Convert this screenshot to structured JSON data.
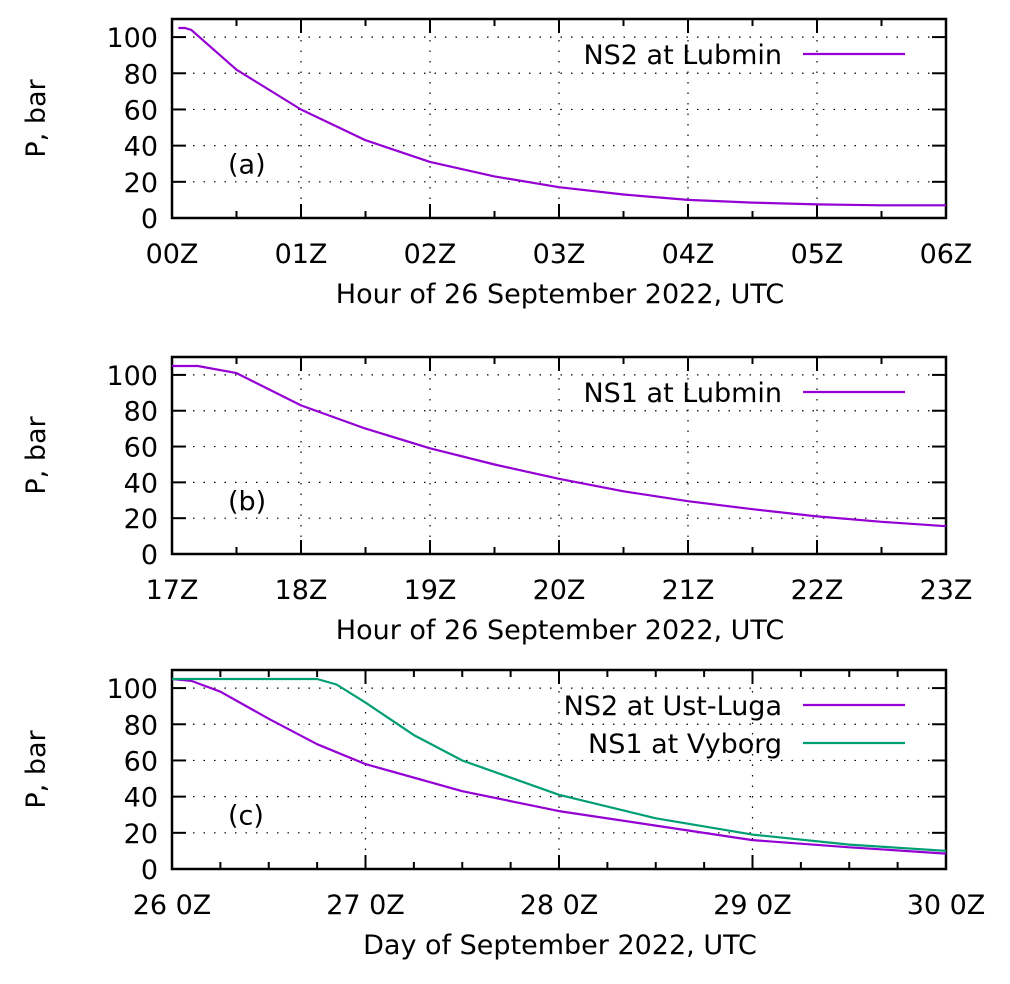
{
  "colors": {
    "purple": "#9400d3",
    "green": "#009e73"
  },
  "chart_data": [
    {
      "type": "line",
      "panel_label": "(a)",
      "xlabel": "Hour of 26 September 2022, UTC",
      "ylabel": "P, bar",
      "xlim": [
        0,
        6
      ],
      "ylim": [
        0,
        110
      ],
      "xticks": [
        0,
        1,
        2,
        3,
        4,
        5,
        6
      ],
      "xtick_labels": [
        "00Z",
        "01Z",
        "02Z",
        "03Z",
        "04Z",
        "05Z",
        "06Z"
      ],
      "yticks": [
        0,
        20,
        40,
        60,
        80,
        100
      ],
      "ytick_labels": [
        "0",
        "20",
        "40",
        "60",
        "80",
        "100"
      ],
      "grid": true,
      "legend_position": "top-right",
      "series": [
        {
          "name": "NS2 at Lubmin",
          "color": "#9400d3",
          "x": [
            0.05,
            0.1,
            0.15,
            0.5,
            1,
            1.5,
            2,
            2.5,
            3,
            3.5,
            4,
            4.5,
            5,
            5.5,
            6
          ],
          "y": [
            105,
            105,
            104,
            82,
            60,
            43,
            31,
            23,
            17,
            13,
            10,
            8.5,
            7.5,
            7,
            7
          ]
        }
      ]
    },
    {
      "type": "line",
      "panel_label": "(b)",
      "xlabel": "Hour of 26 September 2022, UTC",
      "ylabel": "P, bar",
      "xlim": [
        17,
        23
      ],
      "ylim": [
        0,
        110
      ],
      "xticks": [
        17,
        18,
        19,
        20,
        21,
        22,
        23
      ],
      "xtick_labels": [
        "17Z",
        "18Z",
        "19Z",
        "20Z",
        "21Z",
        "22Z",
        "23Z"
      ],
      "yticks": [
        0,
        20,
        40,
        60,
        80,
        100
      ],
      "ytick_labels": [
        "0",
        "20",
        "40",
        "60",
        "80",
        "100"
      ],
      "grid": true,
      "legend_position": "top-right",
      "series": [
        {
          "name": "NS1 at Lubmin",
          "color": "#9400d3",
          "x": [
            17,
            17.2,
            17.5,
            18,
            18.5,
            19,
            19.5,
            20,
            20.5,
            21,
            21.5,
            22,
            22.5,
            23
          ],
          "y": [
            105,
            105,
            101,
            83,
            70,
            59,
            50,
            42,
            35,
            29.5,
            25,
            21,
            18,
            15.5
          ]
        }
      ]
    },
    {
      "type": "line",
      "panel_label": "(c)",
      "xlabel": "Day of September 2022, UTC",
      "ylabel": "P, bar",
      "xlim": [
        26,
        30
      ],
      "ylim": [
        0,
        110
      ],
      "xticks": [
        26,
        27,
        28,
        29,
        30
      ],
      "xtick_labels": [
        "26 0Z",
        "27 0Z",
        "28 0Z",
        "29 0Z",
        "30 0Z"
      ],
      "yticks": [
        0,
        20,
        40,
        60,
        80,
        100
      ],
      "ytick_labels": [
        "0",
        "20",
        "40",
        "60",
        "80",
        "100"
      ],
      "grid": true,
      "legend_position": "top-right",
      "series": [
        {
          "name": "NS2 at Ust-Luga",
          "color": "#9400d3",
          "x": [
            26,
            26.1,
            26.25,
            26.5,
            26.75,
            27,
            27.5,
            28,
            28.5,
            29,
            29.5,
            30
          ],
          "y": [
            105,
            104,
            98,
            83,
            69,
            58,
            43,
            32,
            24,
            16,
            12,
            8.5
          ]
        },
        {
          "name": "NS1 at Vyborg",
          "color": "#009e73",
          "x": [
            26,
            26.5,
            26.75,
            26.85,
            27,
            27.25,
            27.5,
            28,
            28.5,
            29,
            29.5,
            30
          ],
          "y": [
            105,
            105,
            105,
            102,
            92,
            74,
            60,
            41,
            28,
            19,
            13.5,
            10
          ]
        }
      ]
    }
  ]
}
